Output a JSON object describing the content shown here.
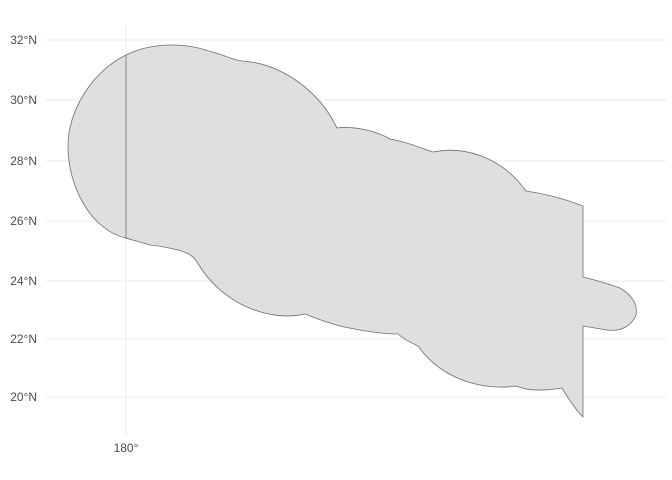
{
  "map": {
    "axes": {
      "y_ticks": [
        {
          "label": "32°N"
        },
        {
          "label": "30°N"
        },
        {
          "label": "28°N"
        },
        {
          "label": "26°N"
        },
        {
          "label": "24°N"
        },
        {
          "label": "22°N"
        },
        {
          "label": "20°N"
        }
      ],
      "x_ticks": [
        {
          "label": "180°"
        }
      ]
    },
    "colors": {
      "background": "#ffffff",
      "grid": "#ebebeb",
      "region_fill": "#dfdfdf",
      "region_stroke": "#6e6e6e",
      "axis_text": "#4d4d4d"
    }
  }
}
